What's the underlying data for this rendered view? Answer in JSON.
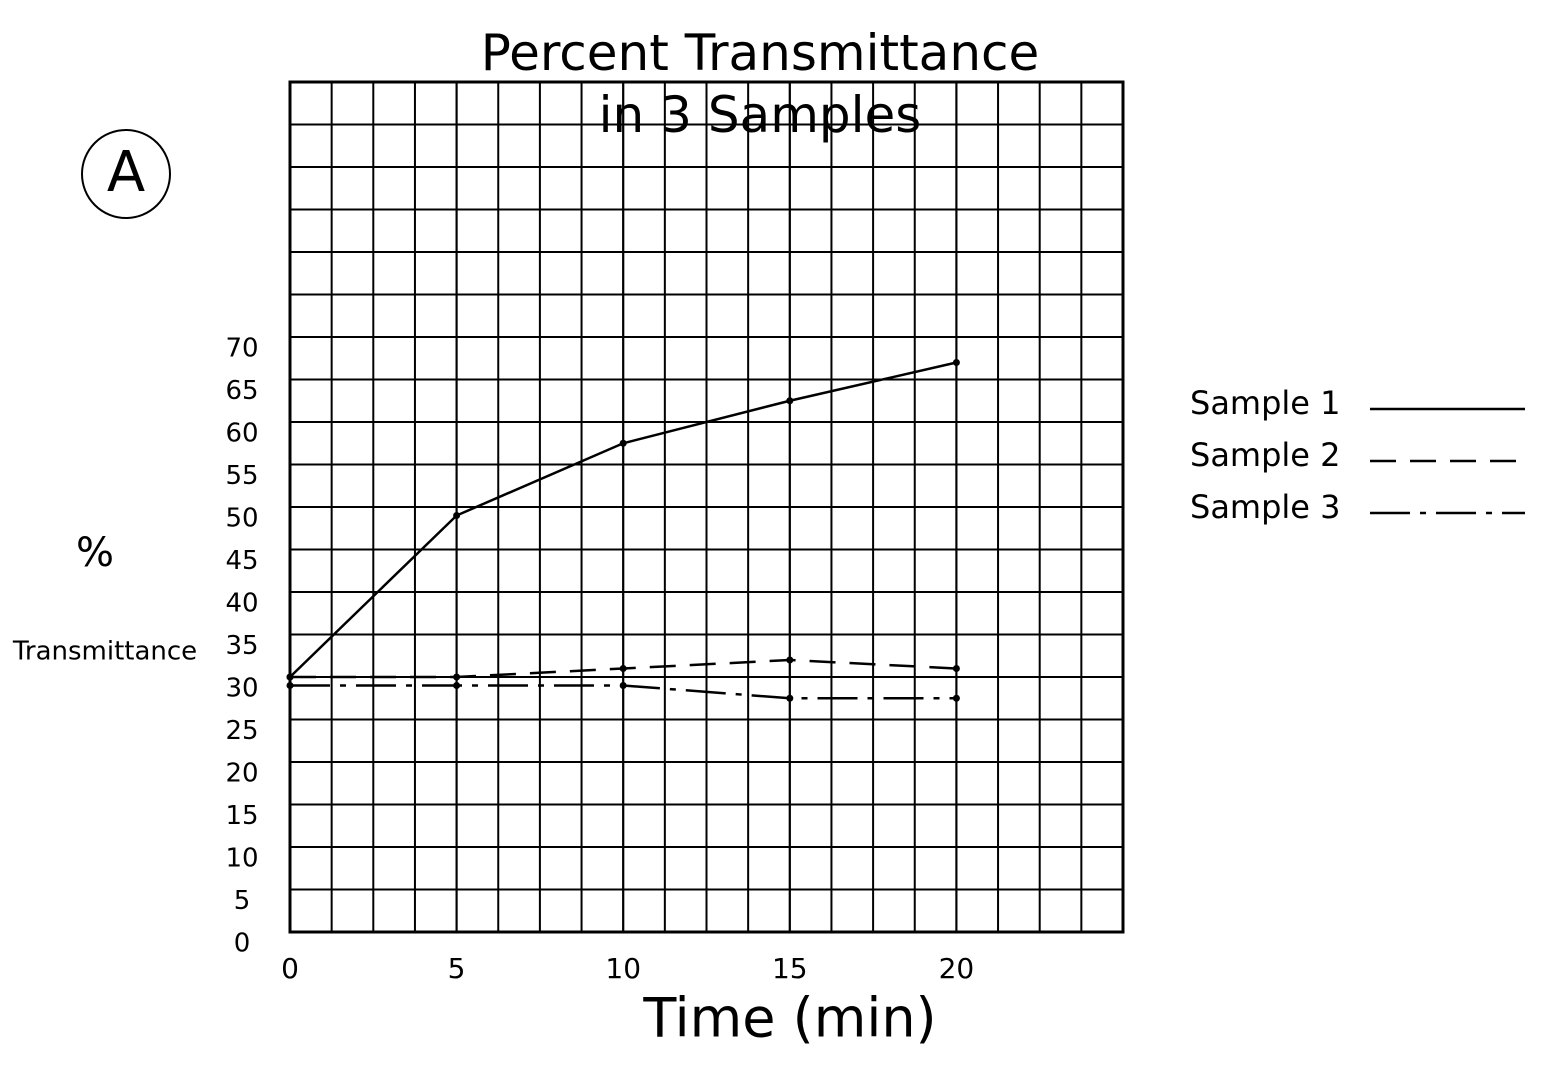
{
  "chart_data": {
    "type": "line",
    "title": "Percent Transmittance in 3 Samples",
    "annotation": "A",
    "xlabel": "Time (min)",
    "ylabel": [
      "%",
      "Transmittance"
    ],
    "x": [
      0,
      5,
      10,
      15,
      20
    ],
    "series": [
      {
        "name": "Sample 1",
        "color": "#000000",
        "dash": "solid",
        "values": [
          30,
          49,
          57.5,
          62.5,
          67
        ]
      },
      {
        "name": "Sample 2",
        "color": "#000000",
        "dash": "dashed",
        "values": [
          30,
          30,
          31,
          32,
          31
        ]
      },
      {
        "name": "Sample 3",
        "color": "#000000",
        "dash": "dashdot",
        "values": [
          29,
          29,
          29,
          27.5,
          27.5
        ]
      }
    ],
    "xlim": [
      0,
      25
    ],
    "ylim": [
      0,
      100
    ],
    "xticks": [
      0,
      5,
      10,
      15,
      20
    ],
    "yticks": [
      0,
      5,
      10,
      15,
      20,
      25,
      30,
      35,
      40,
      45,
      50,
      55,
      60,
      65,
      70
    ],
    "grid": true,
    "legend": "right"
  }
}
